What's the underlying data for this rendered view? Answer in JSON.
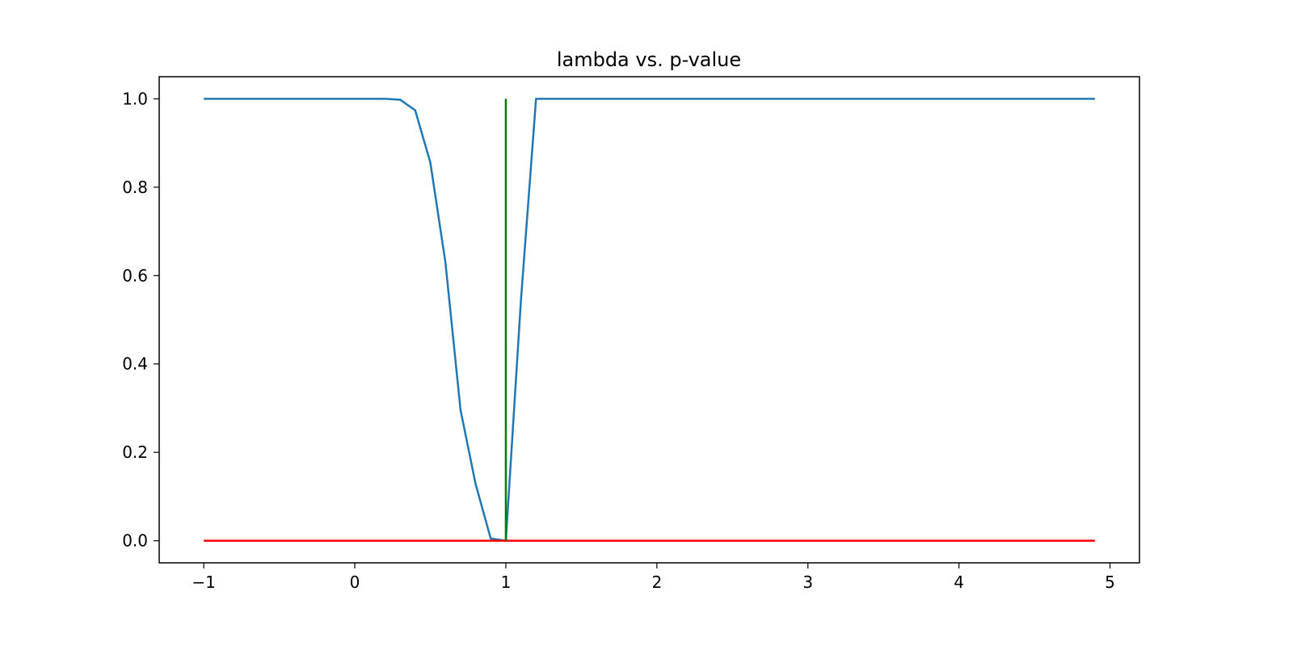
{
  "chart_data": {
    "type": "line",
    "title": "lambda vs. p-value",
    "xlabel": "",
    "ylabel": "",
    "xlim": [
      -1.295,
      5.195
    ],
    "ylim": [
      -0.05,
      1.05
    ],
    "xticks": [
      -1,
      0,
      1,
      2,
      3,
      4,
      5
    ],
    "xtick_labels": [
      "−1",
      "0",
      "1",
      "2",
      "3",
      "4",
      "5"
    ],
    "yticks": [
      0.0,
      0.2,
      0.4,
      0.6,
      0.8,
      1.0
    ],
    "ytick_labels": [
      "0.0",
      "0.2",
      "0.4",
      "0.6",
      "0.8",
      "1.0"
    ],
    "grid": false,
    "series": [
      {
        "color": "#1f77b4",
        "x": [
          -1.0,
          -0.9,
          -0.8,
          -0.7,
          -0.6,
          -0.5,
          -0.4,
          -0.3,
          -0.2,
          -0.1,
          0.0,
          0.1,
          0.2,
          0.3,
          0.4,
          0.5,
          0.6,
          0.7,
          0.8,
          0.9,
          1.0,
          1.1,
          1.2,
          1.3,
          1.4,
          1.5,
          1.6,
          1.7,
          1.8,
          1.9,
          2.0,
          2.1,
          2.2,
          2.3,
          2.4,
          2.5,
          2.6,
          2.7,
          2.8,
          2.9,
          3.0,
          3.1,
          3.2,
          3.3,
          3.4,
          3.5,
          3.6,
          3.7,
          3.8,
          3.9,
          4.0,
          4.1,
          4.2,
          4.3,
          4.4,
          4.5,
          4.6,
          4.7,
          4.8,
          4.9
        ],
        "y": [
          1.0,
          1.0,
          1.0,
          1.0,
          1.0,
          1.0,
          1.0,
          1.0,
          1.0,
          1.0,
          1.0,
          1.0,
          1.0,
          0.998,
          0.974,
          0.856,
          0.63,
          0.296,
          0.128,
          0.005,
          0.0,
          0.544,
          1.0,
          1.0,
          1.0,
          1.0,
          1.0,
          1.0,
          1.0,
          1.0,
          1.0,
          1.0,
          1.0,
          1.0,
          1.0,
          1.0,
          1.0,
          1.0,
          1.0,
          1.0,
          1.0,
          1.0,
          1.0,
          1.0,
          1.0,
          1.0,
          1.0,
          1.0,
          1.0,
          1.0,
          1.0,
          1.0,
          1.0,
          1.0,
          1.0,
          1.0,
          1.0,
          1.0,
          1.0,
          1.0
        ]
      },
      {
        "color": "#ff0000",
        "x": [
          -1.0,
          4.9
        ],
        "y": [
          0.0,
          0.0
        ]
      },
      {
        "color": "#008000",
        "x": [
          1.0,
          1.0
        ],
        "y": [
          0.0,
          1.0
        ]
      }
    ]
  }
}
